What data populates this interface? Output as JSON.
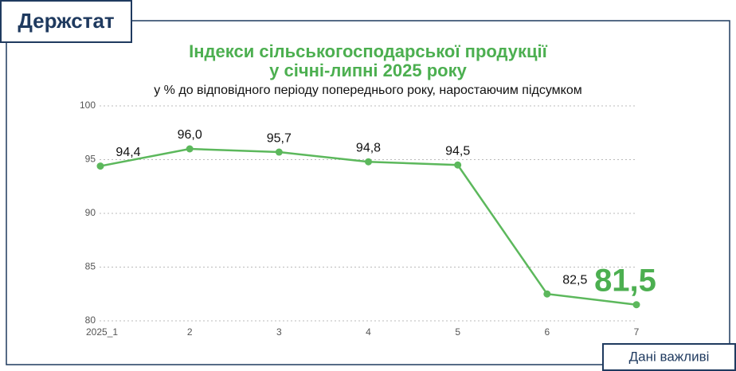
{
  "brand": "Держстат",
  "footer_tag": "Дані важливі",
  "chart_data": {
    "type": "line",
    "title": [
      "Індекси сільськогосподарської продукції",
      "у січні-липні 2025 року"
    ],
    "subtitle": "у % до відповідного періоду попереднього року, наростаючим підсумком",
    "categories": [
      "2025_1",
      "2",
      "3",
      "4",
      "5",
      "6",
      "7"
    ],
    "values": [
      94.4,
      96.0,
      95.7,
      94.8,
      94.5,
      82.5,
      81.5
    ],
    "value_labels": [
      "94,4",
      "96,0",
      "95,7",
      "94,8",
      "94,5",
      "82,5",
      "81,5"
    ],
    "color": "#5cb85c",
    "ylim": [
      80,
      100
    ],
    "yticks": [
      80,
      85,
      90,
      95,
      100
    ],
    "grid": true
  }
}
